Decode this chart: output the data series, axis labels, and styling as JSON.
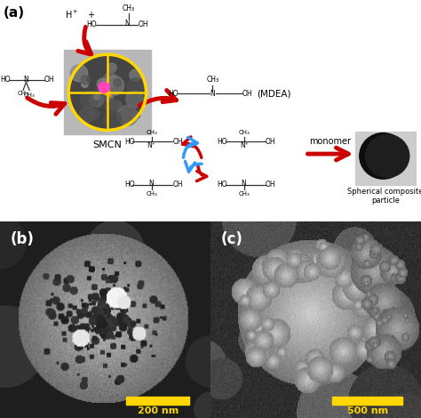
{
  "panel_a_label": "(a)",
  "panel_b_label": "(b)",
  "panel_c_label": "(c)",
  "smcn_label": "SMCN",
  "mdea_label": "(MDEA)",
  "monomer_label": "monomer",
  "spherical_label": "Spherical composite\nparticle",
  "scale_b": "200 nm",
  "scale_c": "500 nm",
  "bg_color": "#ffffff",
  "yellow_color": "#FFD700",
  "red_color": "#CC0000",
  "blue_color": "#3399FF",
  "text_color": "#000000",
  "panel_b_split": 0.5,
  "panel_c_split": 0.5
}
